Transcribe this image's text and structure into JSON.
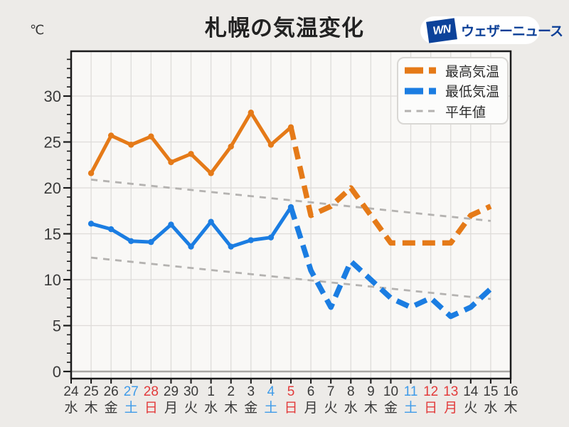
{
  "header": {
    "unit": "℃",
    "title": "札幌の気温変化"
  },
  "logo": {
    "mark": "WN",
    "text": "ウェザーニュース",
    "box_color": "#0c429a",
    "text_color": "#0a3e96"
  },
  "legend": {
    "items": [
      {
        "label": "最高気温",
        "color": "#e57a18",
        "style": "thick-dashed"
      },
      {
        "label": "最低気温",
        "color": "#1b7de2",
        "style": "thick-dashed"
      },
      {
        "label": "平年値",
        "color": "#b4b2b0",
        "style": "thin-dashed"
      }
    ]
  },
  "chart_data": {
    "type": "line",
    "title": "札幌の気温変化",
    "ylabel": "℃",
    "yticks": [
      0,
      5,
      10,
      15,
      20,
      25,
      30
    ],
    "ylim": [
      0,
      34
    ],
    "grid": true,
    "legend_position": "top-right",
    "day_colors": {
      "weekday": "#3a3a3a",
      "saturday": "#3f9be8",
      "sunday": "#e23b3b",
      "holiday": "#e23b3b"
    },
    "categories": [
      {
        "date": "24",
        "day": "水",
        "type": "weekday"
      },
      {
        "date": "25",
        "day": "木",
        "type": "weekday"
      },
      {
        "date": "26",
        "day": "金",
        "type": "weekday"
      },
      {
        "date": "27",
        "day": "土",
        "type": "saturday"
      },
      {
        "date": "28",
        "day": "日",
        "type": "sunday"
      },
      {
        "date": "29",
        "day": "月",
        "type": "weekday"
      },
      {
        "date": "30",
        "day": "火",
        "type": "weekday"
      },
      {
        "date": "1",
        "day": "水",
        "type": "weekday"
      },
      {
        "date": "2",
        "day": "木",
        "type": "weekday"
      },
      {
        "date": "3",
        "day": "金",
        "type": "weekday"
      },
      {
        "date": "4",
        "day": "土",
        "type": "saturday"
      },
      {
        "date": "5",
        "day": "日",
        "type": "sunday"
      },
      {
        "date": "6",
        "day": "月",
        "type": "weekday"
      },
      {
        "date": "7",
        "day": "火",
        "type": "weekday"
      },
      {
        "date": "8",
        "day": "水",
        "type": "weekday"
      },
      {
        "date": "9",
        "day": "木",
        "type": "weekday"
      },
      {
        "date": "10",
        "day": "金",
        "type": "weekday"
      },
      {
        "date": "11",
        "day": "土",
        "type": "saturday"
      },
      {
        "date": "12",
        "day": "日",
        "type": "sunday"
      },
      {
        "date": "13",
        "day": "月",
        "type": "holiday"
      },
      {
        "date": "14",
        "day": "火",
        "type": "weekday"
      },
      {
        "date": "15",
        "day": "水",
        "type": "weekday"
      },
      {
        "date": "16",
        "day": "木",
        "type": "weekday"
      }
    ],
    "series": [
      {
        "name": "最高気温(実況)",
        "color": "#e57a18",
        "style": "solid",
        "markers": true,
        "points": [
          [
            1,
            21.6
          ],
          [
            2,
            25.7
          ],
          [
            3,
            24.7
          ],
          [
            4,
            25.6
          ],
          [
            5,
            22.8
          ],
          [
            6,
            23.7
          ],
          [
            7,
            21.6
          ],
          [
            8,
            24.5
          ],
          [
            9,
            28.2
          ],
          [
            10,
            24.7
          ],
          [
            11,
            26.6
          ]
        ]
      },
      {
        "name": "最高気温(予想)",
        "color": "#e57a18",
        "style": "dashed",
        "markers": false,
        "points": [
          [
            11,
            26.6
          ],
          [
            12,
            17
          ],
          [
            13,
            18
          ],
          [
            14,
            20
          ],
          [
            15,
            17
          ],
          [
            16,
            14
          ],
          [
            17,
            14
          ],
          [
            18,
            14
          ],
          [
            19,
            14
          ],
          [
            20,
            17
          ],
          [
            21,
            18
          ]
        ]
      },
      {
        "name": "最低気温(実況)",
        "color": "#1b7de2",
        "style": "solid",
        "markers": true,
        "points": [
          [
            1,
            16.1
          ],
          [
            2,
            15.5
          ],
          [
            3,
            14.2
          ],
          [
            4,
            14.1
          ],
          [
            5,
            16.0
          ],
          [
            6,
            13.6
          ],
          [
            7,
            16.3
          ],
          [
            8,
            13.6
          ],
          [
            9,
            14.3
          ],
          [
            10,
            14.6
          ],
          [
            11,
            17.9
          ]
        ]
      },
      {
        "name": "最低気温(予想)",
        "color": "#1b7de2",
        "style": "dashed",
        "markers": false,
        "points": [
          [
            11,
            17.9
          ],
          [
            12,
            11
          ],
          [
            13,
            7
          ],
          [
            14,
            12
          ],
          [
            15,
            10
          ],
          [
            16,
            8
          ],
          [
            17,
            7
          ],
          [
            18,
            8
          ],
          [
            19,
            6
          ],
          [
            20,
            7
          ],
          [
            21,
            9
          ]
        ]
      },
      {
        "name": "平年値(最高)",
        "color": "#b4b2b0",
        "style": "normal",
        "markers": false,
        "points": [
          [
            1,
            20.9
          ],
          [
            21,
            16.4
          ]
        ]
      },
      {
        "name": "平年値(最低)",
        "color": "#b4b2b0",
        "style": "normal",
        "markers": false,
        "points": [
          [
            1,
            12.4
          ],
          [
            21,
            7.9
          ]
        ]
      }
    ]
  }
}
